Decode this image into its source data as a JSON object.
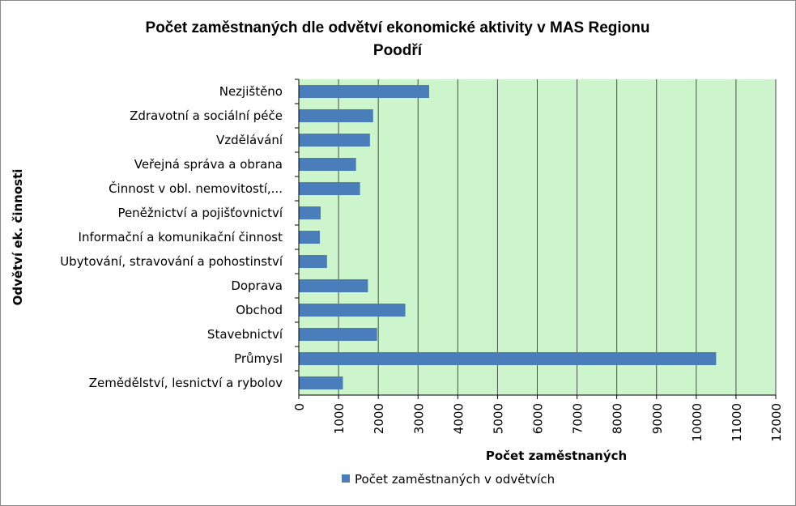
{
  "chart_data": {
    "type": "bar",
    "orientation": "horizontal",
    "title": [
      "Počet zaměstnaných dle odvětví ekonomické aktivity v MAS Regionu",
      "Poodří"
    ],
    "xlabel": "Počet zaměstnaných",
    "ylabel": "Odvětví  ek. činnosti",
    "categories": [
      "Nezjištěno",
      "Zdravotní a sociální péče",
      "Vzdělávání",
      "Veřejná správa a obrana",
      "Činnost v obl. nemovitostí,...",
      "Peněžnictví a pojišťovnictví",
      "Informační a komunikační činnost",
      "Ubytování, stravování a pohostinství",
      "Doprava",
      "Obchod",
      "Stavebnictví",
      "Průmysl",
      "Zemědělství, lesnictví a rybolov"
    ],
    "series": [
      {
        "name": "Počet zaměstnaných v odvětvích",
        "values": [
          3280,
          1870,
          1790,
          1440,
          1540,
          550,
          530,
          710,
          1740,
          2680,
          1970,
          10500,
          1110
        ]
      }
    ],
    "xlim": [
      0,
      12000
    ],
    "ticks": [
      "0",
      "1000",
      "2000",
      "3000",
      "4000",
      "5000",
      "6000",
      "7000",
      "8000",
      "9000",
      "10000",
      "11000",
      "12000"
    ],
    "grid": true,
    "legend": "bottom",
    "colors": {
      "plot_background": "#ccf5cc",
      "bar": "#4a7ebb",
      "gridline": "#4d4d4d"
    }
  }
}
